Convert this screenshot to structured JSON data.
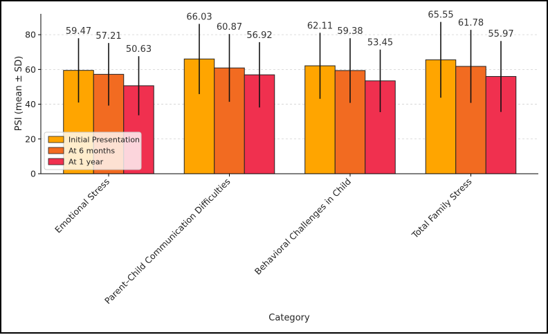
{
  "chart_data": {
    "type": "bar",
    "title": "",
    "xlabel": "Category",
    "ylabel": "PSI (mean ± SD)",
    "ylim": [
      0,
      92
    ],
    "yticks": [
      0,
      20,
      40,
      60,
      80
    ],
    "grid": true,
    "legend_position": "lower-left",
    "categories": [
      "Emotional Stress",
      "Parent–Child Communication Difficulties",
      "Behavioral Challenges in Child",
      "Total Family Stress"
    ],
    "series": [
      {
        "name": "Initial Presentation",
        "color": "#FFA500",
        "values": [
          59.47,
          66.03,
          62.11,
          65.55
        ],
        "sd": [
          18.5,
          20.2,
          19.0,
          21.8
        ]
      },
      {
        "name": "At 6 months",
        "color": "#F26B21",
        "values": [
          57.21,
          60.87,
          59.38,
          61.78
        ],
        "sd": [
          18.0,
          19.5,
          18.6,
          21.0
        ]
      },
      {
        "name": "At 1 year",
        "color": "#F0304F",
        "values": [
          50.63,
          56.92,
          53.45,
          55.97
        ],
        "sd": [
          17.0,
          18.8,
          18.0,
          20.4
        ]
      }
    ]
  }
}
